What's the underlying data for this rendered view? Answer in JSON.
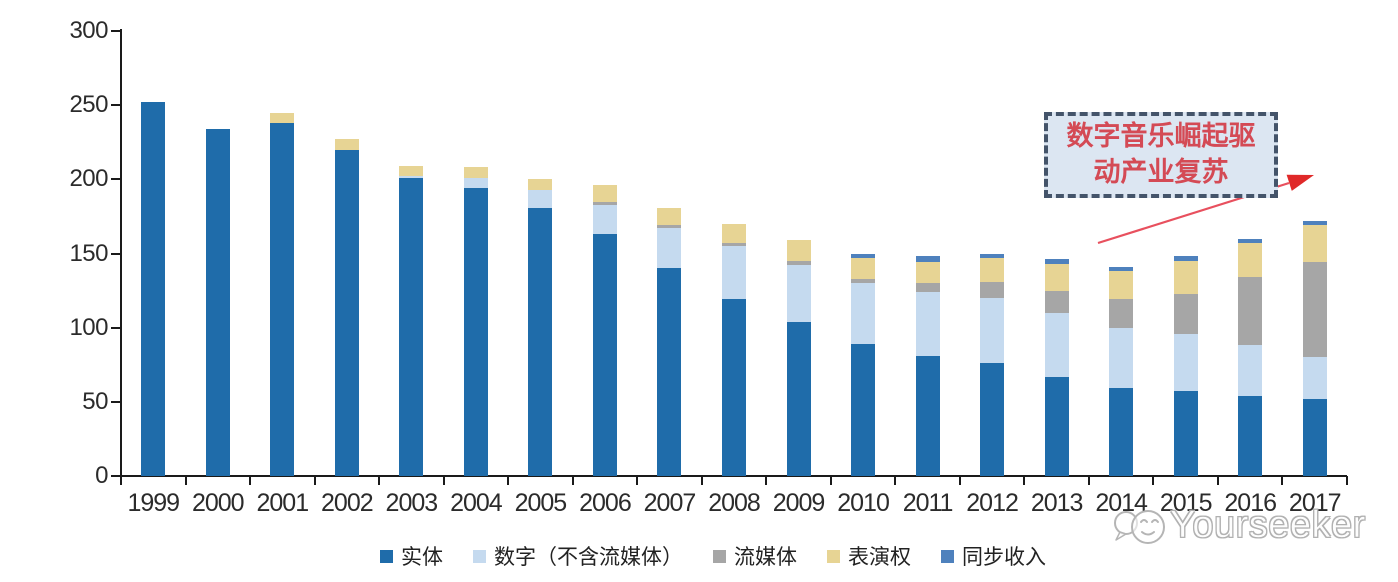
{
  "chart_data": {
    "type": "bar",
    "stacked": true,
    "grid": false,
    "legend_position": "bottom",
    "ylim": [
      0,
      300
    ],
    "yticks": [
      0,
      50,
      100,
      150,
      200,
      250,
      300
    ],
    "categories": [
      "1999",
      "2000",
      "2001",
      "2002",
      "2003",
      "2004",
      "2005",
      "2006",
      "2007",
      "2008",
      "2009",
      "2010",
      "2011",
      "2012",
      "2013",
      "2014",
      "2015",
      "2016",
      "2017"
    ],
    "series": [
      {
        "name": "实体",
        "color": "#1F6CAA",
        "values": [
          252,
          234,
          238,
          220,
          201,
          194,
          181,
          163,
          140,
          119,
          104,
          89,
          81,
          76,
          67,
          59,
          57,
          54,
          52
        ]
      },
      {
        "name": "数字（不含流媒体）",
        "color": "#C5DAEF",
        "values": [
          0,
          0,
          0,
          0,
          1,
          7,
          12,
          20,
          27,
          36,
          38,
          41,
          43,
          44,
          43,
          41,
          39,
          34,
          28
        ]
      },
      {
        "name": "流媒体",
        "color": "#A6A6A6",
        "values": [
          0,
          0,
          0,
          0,
          0,
          0,
          0,
          2,
          2,
          2,
          3,
          3,
          6,
          11,
          15,
          19,
          27,
          46,
          64
        ]
      },
      {
        "name": "表演权",
        "color": "#E7D494",
        "values": [
          0,
          0,
          7,
          7,
          7,
          7,
          7,
          11,
          12,
          13,
          14,
          14,
          14,
          16,
          18,
          19,
          22,
          23,
          25
        ]
      },
      {
        "name": "同步收入",
        "color": "#4E81BD",
        "values": [
          0,
          0,
          0,
          0,
          0,
          0,
          0,
          0,
          0,
          0,
          0,
          3,
          4,
          3,
          3,
          3,
          3,
          3,
          3
        ]
      }
    ]
  },
  "annotation": {
    "line1": "数字音乐崛起驱",
    "line2": "动产业复苏",
    "box_fill": "#DCE6F2",
    "border_color": "#44546A",
    "text_color": "#D44A55",
    "arrow_color": "#E8505E"
  },
  "watermark": {
    "label": "Yourseeker"
  }
}
